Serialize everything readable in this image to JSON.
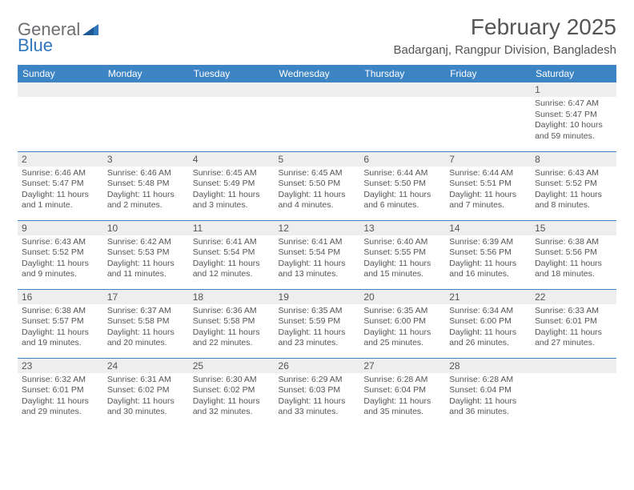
{
  "brand": {
    "word1": "General",
    "word2": "Blue"
  },
  "title": "February 2025",
  "location": "Badarganj, Rangpur Division, Bangladesh",
  "colors": {
    "header_bg": "#3d84c5",
    "header_text": "#ffffff",
    "daynum_bg": "#eeeeee",
    "text": "#555555",
    "logo_gray": "#6d6e71",
    "logo_blue": "#2f76bb",
    "border": "#3d84c5",
    "page_bg": "#ffffff"
  },
  "typography": {
    "title_fontsize": 28,
    "location_fontsize": 15,
    "dayhead_fontsize": 12,
    "cell_fontsize": 10.5
  },
  "day_headers": [
    "Sunday",
    "Monday",
    "Tuesday",
    "Wednesday",
    "Thursday",
    "Friday",
    "Saturday"
  ],
  "weeks": [
    [
      {
        "n": "",
        "c": ""
      },
      {
        "n": "",
        "c": ""
      },
      {
        "n": "",
        "c": ""
      },
      {
        "n": "",
        "c": ""
      },
      {
        "n": "",
        "c": ""
      },
      {
        "n": "",
        "c": ""
      },
      {
        "n": "1",
        "c": "Sunrise: 6:47 AM\nSunset: 5:47 PM\nDaylight: 10 hours and 59 minutes."
      }
    ],
    [
      {
        "n": "2",
        "c": "Sunrise: 6:46 AM\nSunset: 5:47 PM\nDaylight: 11 hours and 1 minute."
      },
      {
        "n": "3",
        "c": "Sunrise: 6:46 AM\nSunset: 5:48 PM\nDaylight: 11 hours and 2 minutes."
      },
      {
        "n": "4",
        "c": "Sunrise: 6:45 AM\nSunset: 5:49 PM\nDaylight: 11 hours and 3 minutes."
      },
      {
        "n": "5",
        "c": "Sunrise: 6:45 AM\nSunset: 5:50 PM\nDaylight: 11 hours and 4 minutes."
      },
      {
        "n": "6",
        "c": "Sunrise: 6:44 AM\nSunset: 5:50 PM\nDaylight: 11 hours and 6 minutes."
      },
      {
        "n": "7",
        "c": "Sunrise: 6:44 AM\nSunset: 5:51 PM\nDaylight: 11 hours and 7 minutes."
      },
      {
        "n": "8",
        "c": "Sunrise: 6:43 AM\nSunset: 5:52 PM\nDaylight: 11 hours and 8 minutes."
      }
    ],
    [
      {
        "n": "9",
        "c": "Sunrise: 6:43 AM\nSunset: 5:52 PM\nDaylight: 11 hours and 9 minutes."
      },
      {
        "n": "10",
        "c": "Sunrise: 6:42 AM\nSunset: 5:53 PM\nDaylight: 11 hours and 11 minutes."
      },
      {
        "n": "11",
        "c": "Sunrise: 6:41 AM\nSunset: 5:54 PM\nDaylight: 11 hours and 12 minutes."
      },
      {
        "n": "12",
        "c": "Sunrise: 6:41 AM\nSunset: 5:54 PM\nDaylight: 11 hours and 13 minutes."
      },
      {
        "n": "13",
        "c": "Sunrise: 6:40 AM\nSunset: 5:55 PM\nDaylight: 11 hours and 15 minutes."
      },
      {
        "n": "14",
        "c": "Sunrise: 6:39 AM\nSunset: 5:56 PM\nDaylight: 11 hours and 16 minutes."
      },
      {
        "n": "15",
        "c": "Sunrise: 6:38 AM\nSunset: 5:56 PM\nDaylight: 11 hours and 18 minutes."
      }
    ],
    [
      {
        "n": "16",
        "c": "Sunrise: 6:38 AM\nSunset: 5:57 PM\nDaylight: 11 hours and 19 minutes."
      },
      {
        "n": "17",
        "c": "Sunrise: 6:37 AM\nSunset: 5:58 PM\nDaylight: 11 hours and 20 minutes."
      },
      {
        "n": "18",
        "c": "Sunrise: 6:36 AM\nSunset: 5:58 PM\nDaylight: 11 hours and 22 minutes."
      },
      {
        "n": "19",
        "c": "Sunrise: 6:35 AM\nSunset: 5:59 PM\nDaylight: 11 hours and 23 minutes."
      },
      {
        "n": "20",
        "c": "Sunrise: 6:35 AM\nSunset: 6:00 PM\nDaylight: 11 hours and 25 minutes."
      },
      {
        "n": "21",
        "c": "Sunrise: 6:34 AM\nSunset: 6:00 PM\nDaylight: 11 hours and 26 minutes."
      },
      {
        "n": "22",
        "c": "Sunrise: 6:33 AM\nSunset: 6:01 PM\nDaylight: 11 hours and 27 minutes."
      }
    ],
    [
      {
        "n": "23",
        "c": "Sunrise: 6:32 AM\nSunset: 6:01 PM\nDaylight: 11 hours and 29 minutes."
      },
      {
        "n": "24",
        "c": "Sunrise: 6:31 AM\nSunset: 6:02 PM\nDaylight: 11 hours and 30 minutes."
      },
      {
        "n": "25",
        "c": "Sunrise: 6:30 AM\nSunset: 6:02 PM\nDaylight: 11 hours and 32 minutes."
      },
      {
        "n": "26",
        "c": "Sunrise: 6:29 AM\nSunset: 6:03 PM\nDaylight: 11 hours and 33 minutes."
      },
      {
        "n": "27",
        "c": "Sunrise: 6:28 AM\nSunset: 6:04 PM\nDaylight: 11 hours and 35 minutes."
      },
      {
        "n": "28",
        "c": "Sunrise: 6:28 AM\nSunset: 6:04 PM\nDaylight: 11 hours and 36 minutes."
      },
      {
        "n": "",
        "c": ""
      }
    ]
  ]
}
